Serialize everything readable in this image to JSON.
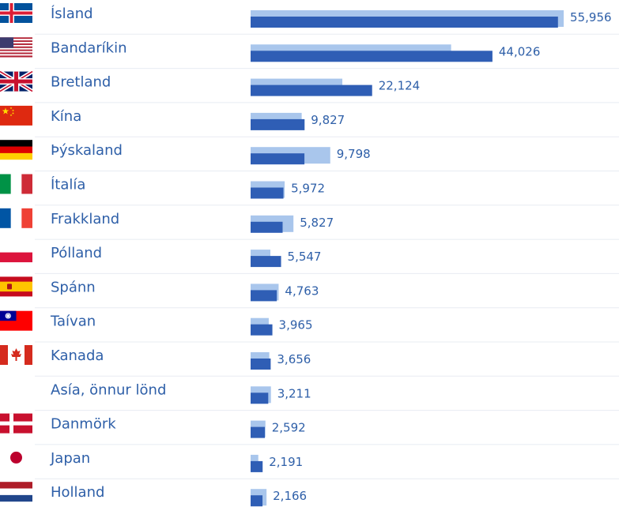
{
  "chart_data": {
    "type": "bar",
    "orientation": "horizontal",
    "categories": [
      "Ísland",
      "Bandaríkin",
      "Bretland",
      "Kína",
      "Þýskaland",
      "Ítalía",
      "Frakkland",
      "Pólland",
      "Spánn",
      "Taívan",
      "Kanada",
      "Asía, önnur lönd",
      "Danmörk",
      "Japan",
      "Holland"
    ],
    "flags": [
      "flag-iceland-icon",
      "flag-usa-icon",
      "flag-uk-icon",
      "flag-china-icon",
      "flag-germany-icon",
      "flag-italy-icon",
      "flag-france-icon",
      "flag-poland-icon",
      "flag-spain-icon",
      "flag-taiwan-icon",
      "flag-canada-icon",
      "",
      "flag-denmark-icon",
      "flag-japan-icon",
      "flag-netherlands-icon"
    ],
    "value_labels": [
      "55,956",
      "44,026",
      "22,124",
      "9,827",
      "9,798",
      "5,972",
      "5,827",
      "5,547",
      "4,763",
      "3,965",
      "3,656",
      "3,211",
      "2,592",
      "2,191",
      "2,166"
    ],
    "series": [
      {
        "values": [
          55956,
          44026,
          22124,
          9827,
          9798,
          5972,
          5827,
          5547,
          4763,
          3965,
          3656,
          3211,
          2592,
          2191,
          2166
        ],
        "color": "#2f5eb5"
      },
      {
        "values": [
          57000,
          36500,
          16700,
          9300,
          14500,
          6200,
          7800,
          3600,
          5100,
          3300,
          3400,
          3700,
          2700,
          1400,
          2900
        ],
        "color": "#a9c6ec"
      }
    ],
    "xlim": [
      0,
      58000
    ],
    "grid": false,
    "legend": "none"
  }
}
